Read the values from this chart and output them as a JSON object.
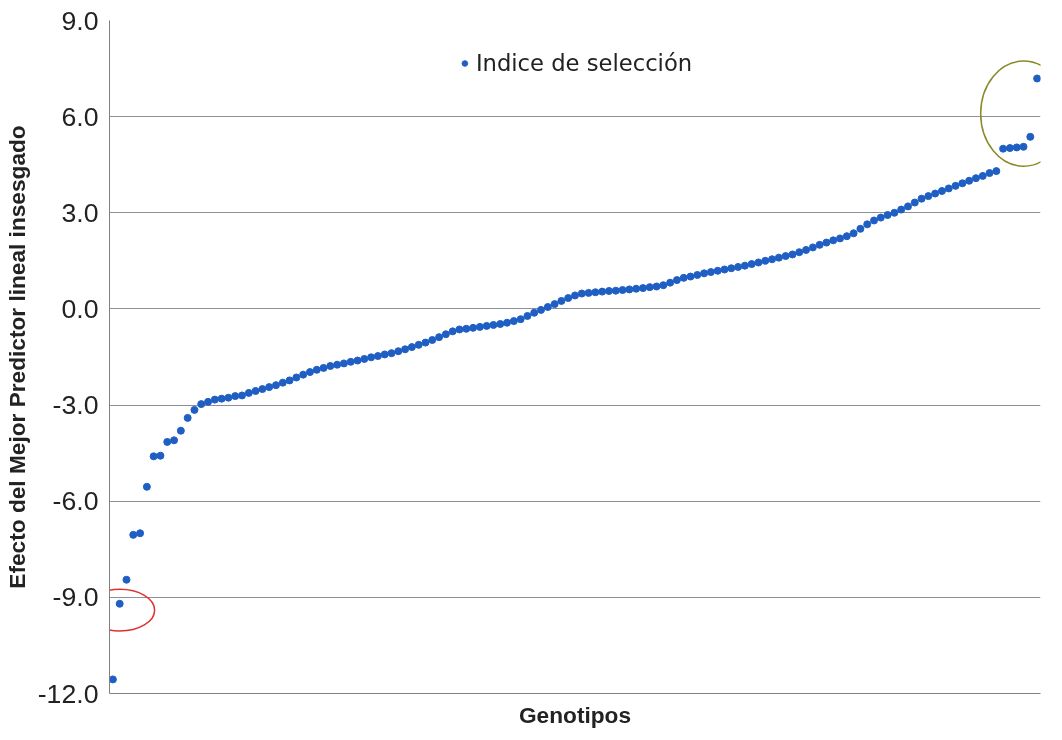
{
  "chart_data": {
    "type": "scatter",
    "xlabel": "Genotipos",
    "ylabel": "Efecto del Mejor Predictor lineal insesgado",
    "categories": [
      null,
      null,
      null,
      null,
      null,
      null,
      null,
      null,
      null,
      null,
      null,
      null,
      null,
      null,
      null,
      null,
      null,
      null,
      null,
      null,
      null,
      null,
      null,
      null,
      null,
      null,
      null,
      null,
      null,
      null,
      null,
      null,
      null,
      null,
      null,
      null,
      null,
      null,
      null,
      null,
      null,
      null,
      null,
      null,
      null,
      null,
      null,
      null,
      null,
      null,
      null,
      null,
      null,
      null,
      null,
      null,
      null,
      null,
      null,
      null,
      null,
      null,
      null,
      null,
      null,
      null,
      null,
      null,
      null,
      null,
      null,
      null,
      null,
      null,
      null,
      null,
      null,
      null,
      null,
      null,
      null,
      null,
      null,
      null,
      null,
      null,
      null,
      null,
      null,
      null,
      null,
      null,
      null,
      null,
      null,
      null,
      null,
      null,
      null,
      null,
      null,
      null,
      null,
      null,
      null,
      null,
      null,
      null,
      null,
      null,
      null,
      null,
      null,
      null,
      null,
      null,
      null,
      null,
      null,
      null,
      null,
      null,
      null,
      null,
      null,
      null,
      null,
      null,
      null,
      null,
      null,
      null,
      null,
      null,
      null,
      null,
      null
    ],
    "series": [
      {
        "name": "Indice de selección",
        "color": "#1f5fc4",
        "values": [
          -11.56,
          -9.2,
          -8.45,
          -7.05,
          -7.0,
          -5.55,
          -4.6,
          -4.58,
          -4.15,
          -4.1,
          -3.8,
          -3.4,
          -3.15,
          -2.97,
          -2.9,
          -2.83,
          -2.8,
          -2.77,
          -2.72,
          -2.7,
          -2.62,
          -2.56,
          -2.5,
          -2.44,
          -2.38,
          -2.3,
          -2.23,
          -2.14,
          -2.05,
          -1.97,
          -1.9,
          -1.84,
          -1.78,
          -1.74,
          -1.7,
          -1.65,
          -1.61,
          -1.56,
          -1.51,
          -1.47,
          -1.42,
          -1.38,
          -1.32,
          -1.26,
          -1.19,
          -1.12,
          -1.05,
          -0.97,
          -0.88,
          -0.79,
          -0.7,
          -0.64,
          -0.62,
          -0.59,
          -0.56,
          -0.53,
          -0.5,
          -0.47,
          -0.43,
          -0.38,
          -0.32,
          -0.22,
          -0.12,
          -0.03,
          0.06,
          0.15,
          0.25,
          0.34,
          0.42,
          0.48,
          0.5,
          0.52,
          0.54,
          0.56,
          0.57,
          0.59,
          0.61,
          0.63,
          0.65,
          0.68,
          0.7,
          0.74,
          0.82,
          0.9,
          0.97,
          1.01,
          1.06,
          1.11,
          1.15,
          1.19,
          1.23,
          1.27,
          1.31,
          1.35,
          1.4,
          1.45,
          1.5,
          1.55,
          1.6,
          1.65,
          1.7,
          1.77,
          1.84,
          1.92,
          2.0,
          2.07,
          2.14,
          2.2,
          2.27,
          2.36,
          2.5,
          2.64,
          2.76,
          2.85,
          2.93,
          3.0,
          3.1,
          3.2,
          3.32,
          3.44,
          3.52,
          3.6,
          3.68,
          3.76,
          3.84,
          3.92,
          4.0,
          4.08,
          4.15,
          4.24,
          4.3,
          5.0,
          5.02,
          5.04,
          5.06,
          5.37,
          7.19
        ]
      }
    ],
    "ylim": [
      -12,
      9
    ],
    "yticks": [
      {
        "value": -12,
        "label": "-12.0"
      },
      {
        "value": -9,
        "label": "-9.0"
      },
      {
        "value": -6,
        "label": "-6.0"
      },
      {
        "value": -3,
        "label": "-3.0"
      },
      {
        "value": 0,
        "label": "0.0"
      },
      {
        "value": 3,
        "label": "3.0"
      },
      {
        "value": 6,
        "label": "6.0"
      },
      {
        "value": 9,
        "label": "9.0"
      }
    ],
    "grid": "y",
    "legend": "top",
    "marker": "circle",
    "tick_labels": "y"
  }
}
